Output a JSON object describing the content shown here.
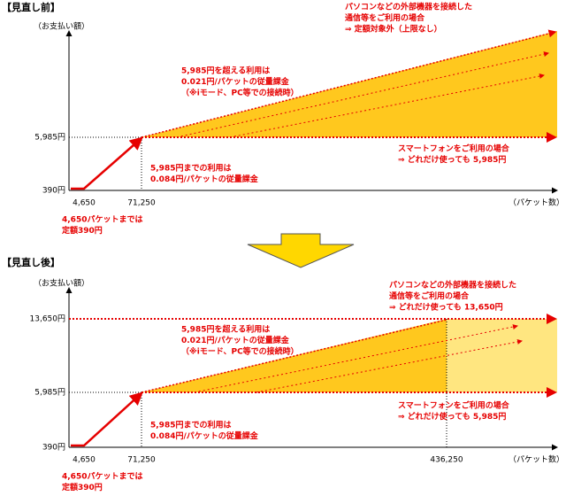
{
  "sections": [
    {
      "title": "【見直し前】",
      "y_axis_label": "（お支払い額）",
      "x_axis_label": "（パケット数）",
      "y_ticks": [
        "5,985円",
        "390円"
      ],
      "x_ticks": [
        "4,650",
        "71,250"
      ],
      "notes": {
        "top": [
          "パソコンなどの外部機器を接続した",
          "通信等をご利用の場合",
          "⇒ 定額対象外（上限なし）"
        ],
        "over": [
          "5,985円を超える利用は",
          "0.021円/パケットの従量課金",
          "（※iモード、PC等での接続時）"
        ],
        "smartphone": [
          "スマートフォンをご利用の場合",
          "⇒ どれだけ使っても 5,985円"
        ],
        "under": [
          "5,985円までの利用は",
          "0.084円/パケットの従量課金"
        ],
        "base": [
          "4,650パケットまでは",
          "定額390円"
        ]
      }
    },
    {
      "title": "【見直し後】",
      "y_axis_label": "（お支払い額）",
      "x_axis_label": "（パケット数）",
      "y_ticks": [
        "13,650円",
        "5,985円",
        "390円"
      ],
      "x_ticks": [
        "4,650",
        "71,250",
        "436,250"
      ],
      "notes": {
        "top": [
          "パソコンなどの外部機器を接続した",
          "通信等をご利用の場合",
          "⇒ どれだけ使っても 13,650円"
        ],
        "over": [
          "5,985円を超える利用は",
          "0.021円/パケットの従量課金",
          "（※iモード、PC等での接続時）"
        ],
        "smartphone": [
          "スマートフォンをご利用の場合",
          "⇒ どれだけ使っても 5,985円"
        ],
        "under": [
          "5,985円までの利用は",
          "0.084円/パケットの従量課金"
        ],
        "base": [
          "4,650パケットまでは",
          "定額390円"
        ]
      }
    }
  ]
}
